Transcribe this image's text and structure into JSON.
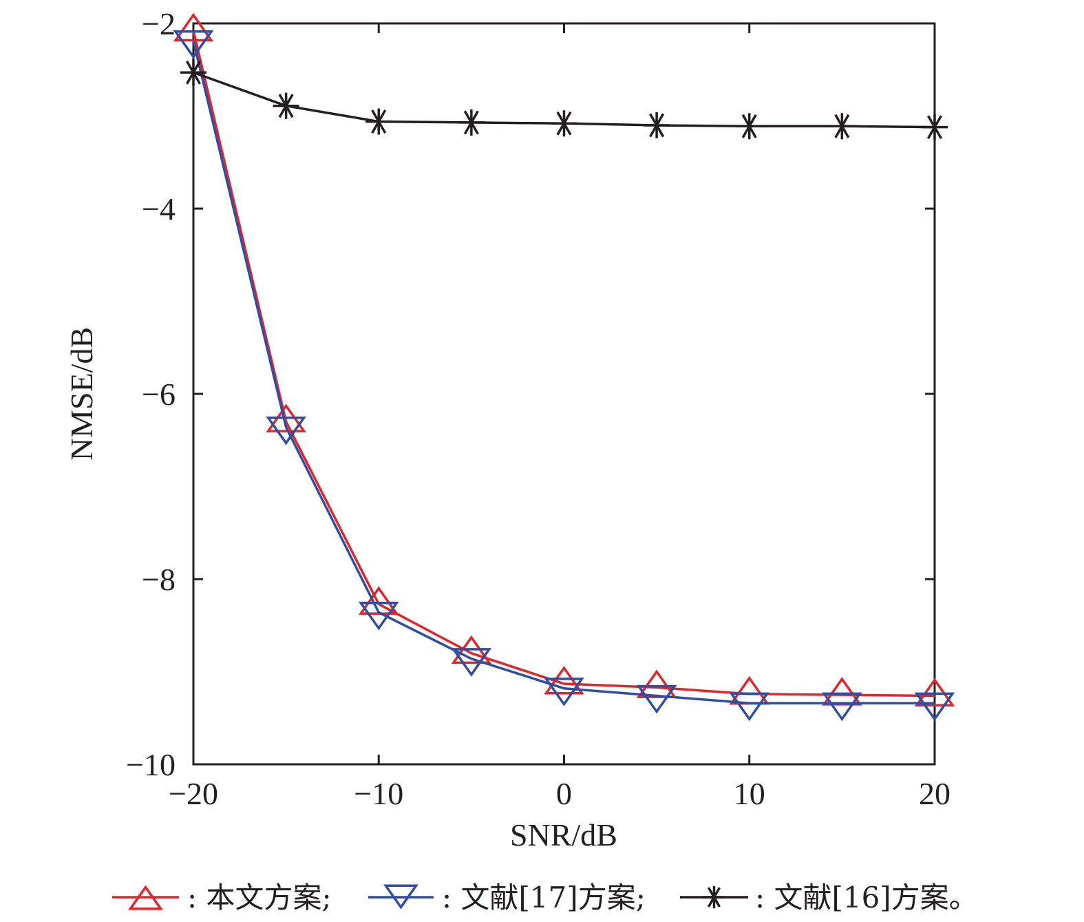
{
  "chart_data": {
    "type": "line",
    "title": "",
    "xlabel": "SNR/dB",
    "ylabel": "NMSE/dB",
    "xlim": [
      -20,
      20
    ],
    "ylim": [
      -10,
      -2
    ],
    "xticks": [
      -20,
      -10,
      0,
      10,
      20
    ],
    "yticks": [
      -2,
      -4,
      -6,
      -8,
      -10
    ],
    "xtick_labels": [
      "−20",
      "−10",
      "0",
      "10",
      "20"
    ],
    "ytick_labels": [
      "−2",
      "−4",
      "−6",
      "−8",
      "−10"
    ],
    "grid": false,
    "legend_position": "bottom",
    "x": [
      -20,
      -15,
      -10,
      -5,
      0,
      5,
      10,
      15,
      20
    ],
    "series": [
      {
        "name": "本文方案",
        "color": "#e0262b",
        "marker": "triangle-up",
        "values": [
          -2.08,
          -6.3,
          -8.27,
          -8.8,
          -9.13,
          -9.17,
          -9.24,
          -9.25,
          -9.26
        ]
      },
      {
        "name": "文献[17]方案",
        "color": "#2f4ea3",
        "marker": "triangle-down",
        "values": [
          -2.19,
          -6.36,
          -8.36,
          -8.86,
          -9.18,
          -9.26,
          -9.34,
          -9.34,
          -9.34
        ]
      },
      {
        "name": "文献[16]方案",
        "color": "#231f20",
        "marker": "star",
        "values": [
          -2.53,
          -2.89,
          -3.06,
          -3.07,
          -3.08,
          -3.1,
          -3.11,
          -3.11,
          -3.12
        ]
      }
    ],
    "legend": [
      {
        "label": ": 本文方案;"
      },
      {
        "label": ": 文献[17]方案;"
      },
      {
        "label": ": 文献[16]方案。"
      }
    ]
  }
}
